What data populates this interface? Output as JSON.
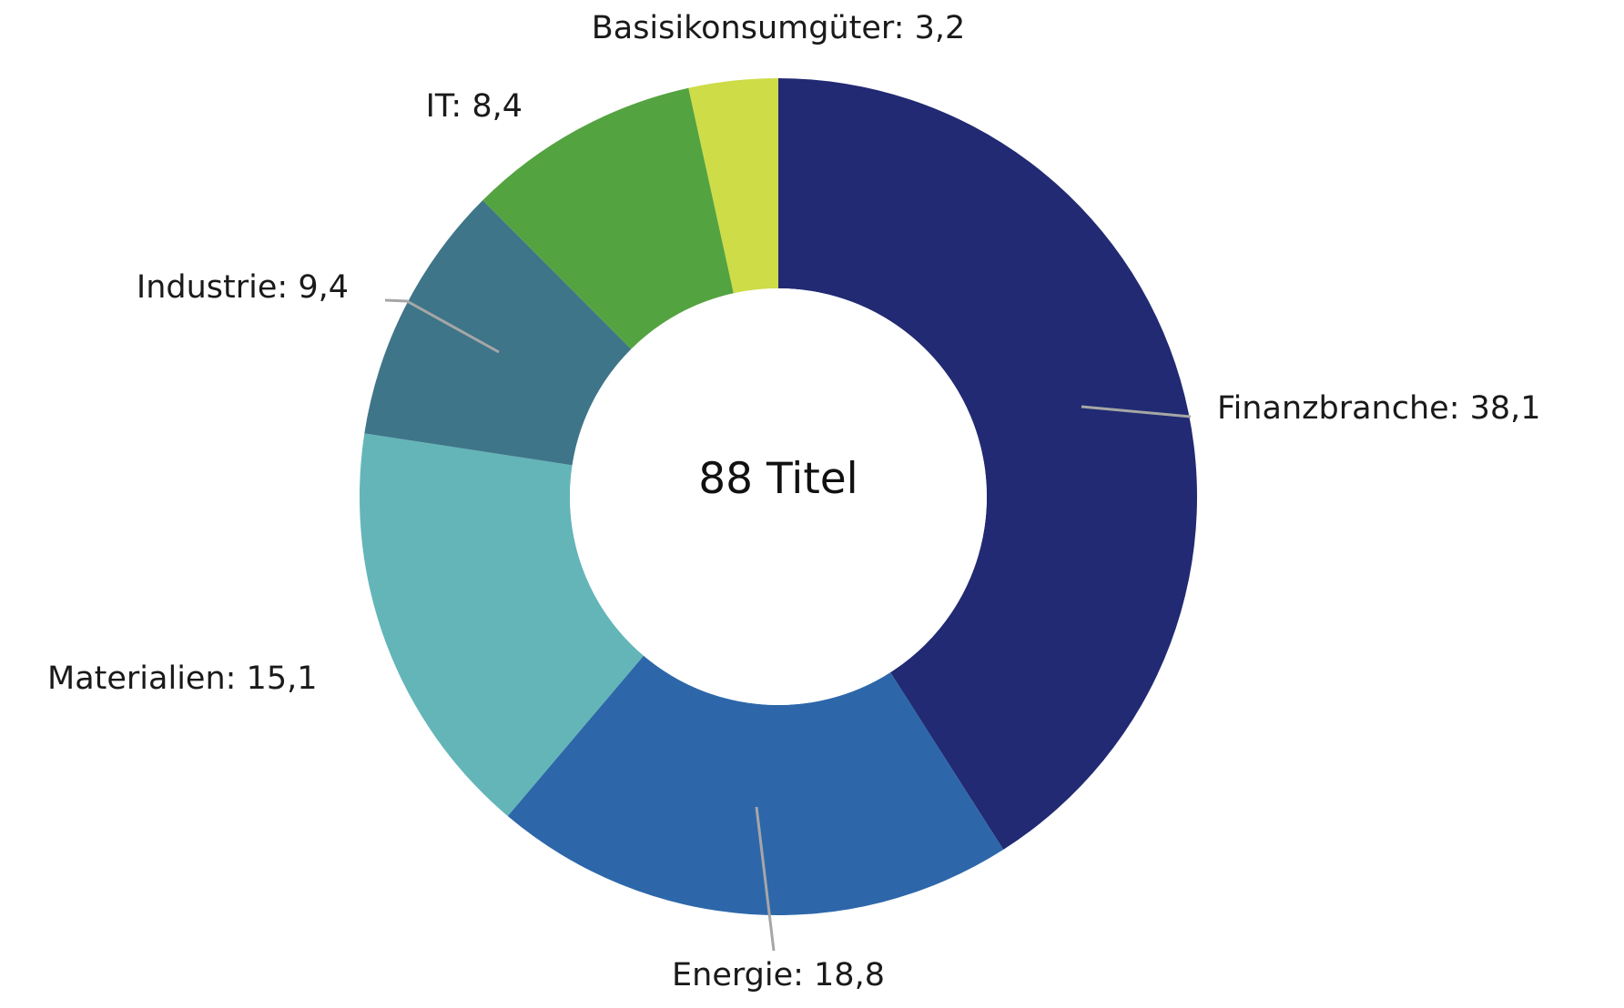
{
  "chart_data": {
    "type": "pie",
    "variant": "donut",
    "center_label": "88 Titel",
    "start": "12 o'clock",
    "direction": "clockwise",
    "slices": [
      {
        "category": "Finanzbranche",
        "value": 38.1,
        "label": "Finanzbranche: 38,1",
        "color": "#212a72"
      },
      {
        "category": "Energie",
        "value": 18.8,
        "label": "Energie: 18,8",
        "color": "#2d67a9"
      },
      {
        "category": "Materialien",
        "value": 15.1,
        "label": "Materialien: 15,1",
        "color": "#63b5b8"
      },
      {
        "category": "Industrie",
        "value": 9.4,
        "label": "Industrie: 9,4",
        "color": "#3e7589"
      },
      {
        "category": "IT",
        "value": 8.4,
        "label": "IT: 8,4",
        "color": "#54a341"
      },
      {
        "category": "Basisikonsumgüter",
        "value": 3.2,
        "label": "Basisikonsumgüter: 3,2",
        "color": "#cddc47"
      }
    ],
    "legend": "none",
    "leader_line_color": "#a6a6a6"
  }
}
